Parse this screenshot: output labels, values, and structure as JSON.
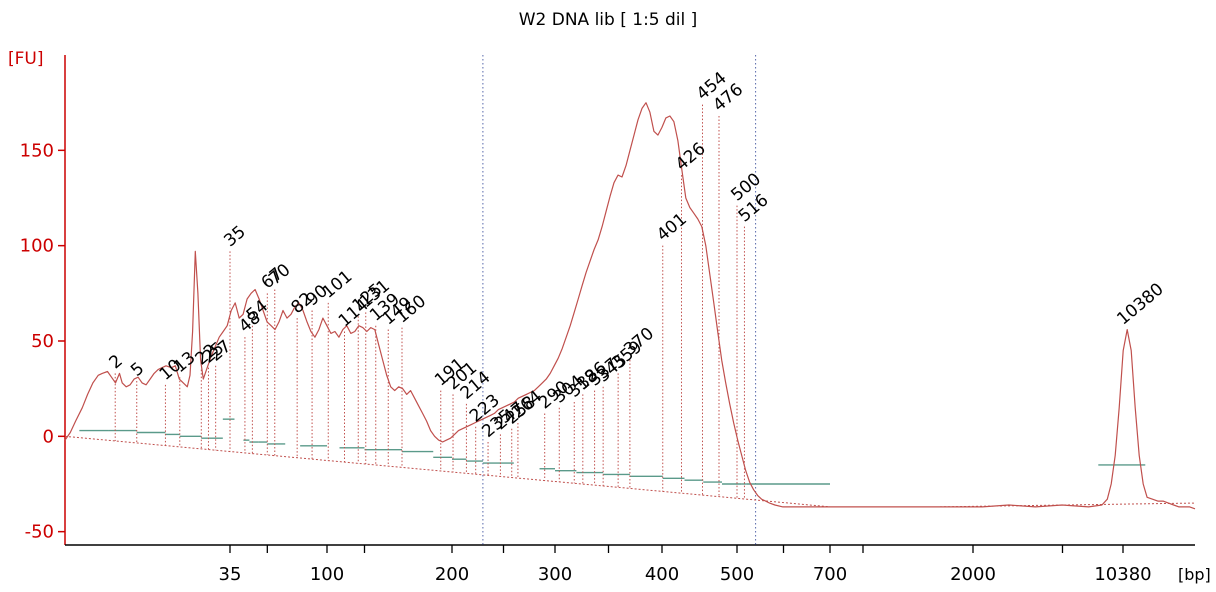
{
  "chart_data": {
    "type": "line",
    "title": "W2 DNA lib  [ 1:5 dil ]",
    "ylabel": "[FU]",
    "xlabel": "[bp]",
    "ylim": [
      -57,
      200
    ],
    "y_ticks": [
      -50,
      0,
      50,
      100,
      150
    ],
    "x_ticks": [
      "35",
      "100",
      "200",
      "300",
      "400",
      "500",
      "700",
      "2000",
      "10380"
    ],
    "grid": false,
    "series_color": "#c0504d",
    "lower_marker": "35",
    "lower_marker_color": "#008000",
    "upper_marker": "10380",
    "upper_marker_color": "#9933ff",
    "region_bounds_bp": [
      230,
      540
    ],
    "peaks": [
      {
        "label": "2",
        "bp": 19,
        "fu": 33
      },
      {
        "label": "5",
        "bp": 22,
        "fu": 29
      },
      {
        "label": "10",
        "bp": 26,
        "fu": 27
      },
      {
        "label": "13",
        "bp": 28,
        "fu": 31
      },
      {
        "label": "22",
        "bp": 31,
        "fu": 35
      },
      {
        "label": "25",
        "bp": 32,
        "fu": 36
      },
      {
        "label": "27",
        "bp": 33,
        "fu": 37
      },
      {
        "label": "35",
        "bp": 35,
        "fu": 97
      },
      {
        "label": "48",
        "bp": 45,
        "fu": 52
      },
      {
        "label": "54",
        "bp": 50,
        "fu": 58
      },
      {
        "label": "67",
        "bp": 60,
        "fu": 75
      },
      {
        "label": "70",
        "bp": 65,
        "fu": 77
      },
      {
        "label": "82",
        "bp": 80,
        "fu": 62
      },
      {
        "label": "90",
        "bp": 90,
        "fu": 66
      },
      {
        "label": "101",
        "bp": 101,
        "fu": 70
      },
      {
        "label": "114",
        "bp": 114,
        "fu": 55
      },
      {
        "label": "125",
        "bp": 125,
        "fu": 63
      },
      {
        "label": "131",
        "bp": 131,
        "fu": 65
      },
      {
        "label": "139",
        "bp": 139,
        "fu": 58
      },
      {
        "label": "149",
        "bp": 149,
        "fu": 56
      },
      {
        "label": "160",
        "bp": 160,
        "fu": 57
      },
      {
        "label": "191",
        "bp": 191,
        "fu": 24
      },
      {
        "label": "201",
        "bp": 201,
        "fu": 22
      },
      {
        "label": "214",
        "bp": 214,
        "fu": 17
      },
      {
        "label": "223",
        "bp": 223,
        "fu": 5
      },
      {
        "label": "235",
        "bp": 235,
        "fu": -3
      },
      {
        "label": "247",
        "bp": 247,
        "fu": 1
      },
      {
        "label": "258",
        "bp": 258,
        "fu": 4
      },
      {
        "label": "264",
        "bp": 264,
        "fu": 7
      },
      {
        "label": "290",
        "bp": 290,
        "fu": 12
      },
      {
        "label": "304",
        "bp": 304,
        "fu": 15
      },
      {
        "label": "318",
        "bp": 318,
        "fu": 18
      },
      {
        "label": "326",
        "bp": 326,
        "fu": 22
      },
      {
        "label": "337",
        "bp": 337,
        "fu": 24
      },
      {
        "label": "345",
        "bp": 345,
        "fu": 26
      },
      {
        "label": "359",
        "bp": 359,
        "fu": 33
      },
      {
        "label": "370",
        "bp": 370,
        "fu": 40
      },
      {
        "label": "401",
        "bp": 401,
        "fu": 100
      },
      {
        "label": "426",
        "bp": 426,
        "fu": 137
      },
      {
        "label": "454",
        "bp": 454,
        "fu": 174
      },
      {
        "label": "476",
        "bp": 476,
        "fu": 168
      },
      {
        "label": "500",
        "bp": 500,
        "fu": 121
      },
      {
        "label": "516",
        "bp": 516,
        "fu": 110
      },
      {
        "label": "10380",
        "bp": 10380,
        "fu": 56
      }
    ],
    "trace_fu": [
      [
        0,
        -2
      ],
      [
        4,
        2
      ],
      [
        8,
        8
      ],
      [
        13,
        15
      ],
      [
        17,
        22
      ],
      [
        21,
        28
      ],
      [
        25,
        32
      ],
      [
        28,
        33
      ],
      [
        32,
        34
      ],
      [
        35,
        31
      ],
      [
        38,
        28
      ],
      [
        41,
        33
      ],
      [
        43,
        28
      ],
      [
        46,
        26
      ],
      [
        49,
        27
      ],
      [
        52,
        30
      ],
      [
        55,
        31
      ],
      [
        58,
        28
      ],
      [
        61,
        27
      ],
      [
        64,
        30
      ],
      [
        67,
        33
      ],
      [
        70,
        35
      ],
      [
        73,
        36
      ],
      [
        76,
        37
      ],
      [
        80,
        36
      ],
      [
        83,
        37
      ],
      [
        86,
        30
      ],
      [
        89,
        28
      ],
      [
        92,
        26
      ],
      [
        94,
        32
      ],
      [
        96,
        55
      ],
      [
        98,
        97
      ],
      [
        100,
        75
      ],
      [
        102,
        40
      ],
      [
        104,
        30
      ],
      [
        107,
        36
      ],
      [
        110,
        42
      ],
      [
        113,
        47
      ],
      [
        116,
        52
      ],
      [
        119,
        55
      ],
      [
        122,
        58
      ],
      [
        125,
        66
      ],
      [
        128,
        70
      ],
      [
        131,
        62
      ],
      [
        134,
        64
      ],
      [
        137,
        72
      ],
      [
        140,
        75
      ],
      [
        143,
        77
      ],
      [
        146,
        72
      ],
      [
        149,
        66
      ],
      [
        152,
        60
      ],
      [
        155,
        58
      ],
      [
        158,
        56
      ],
      [
        161,
        60
      ],
      [
        164,
        66
      ],
      [
        167,
        62
      ],
      [
        170,
        64
      ],
      [
        173,
        68
      ],
      [
        176,
        70
      ],
      [
        179,
        66
      ],
      [
        182,
        60
      ],
      [
        185,
        55
      ],
      [
        188,
        52
      ],
      [
        191,
        56
      ],
      [
        194,
        62
      ],
      [
        197,
        58
      ],
      [
        200,
        54
      ],
      [
        203,
        55
      ],
      [
        206,
        52
      ],
      [
        209,
        56
      ],
      [
        212,
        58
      ],
      [
        215,
        54
      ],
      [
        218,
        55
      ],
      [
        221,
        58
      ],
      [
        224,
        57
      ],
      [
        227,
        55
      ],
      [
        230,
        57
      ],
      [
        233,
        56
      ],
      [
        236,
        48
      ],
      [
        239,
        40
      ],
      [
        242,
        32
      ],
      [
        245,
        26
      ],
      [
        248,
        24
      ],
      [
        251,
        26
      ],
      [
        254,
        25
      ],
      [
        257,
        22
      ],
      [
        260,
        24
      ],
      [
        263,
        20
      ],
      [
        266,
        16
      ],
      [
        269,
        12
      ],
      [
        272,
        8
      ],
      [
        275,
        3
      ],
      [
        278,
        0
      ],
      [
        281,
        -2
      ],
      [
        284,
        -3
      ],
      [
        287,
        -2
      ],
      [
        290,
        -1
      ],
      [
        293,
        1
      ],
      [
        296,
        3
      ],
      [
        299,
        4
      ],
      [
        302,
        5
      ],
      [
        305,
        6
      ],
      [
        308,
        7
      ],
      [
        311,
        8
      ],
      [
        314,
        9
      ],
      [
        317,
        10
      ],
      [
        320,
        11
      ],
      [
        323,
        12
      ],
      [
        326,
        14
      ],
      [
        329,
        15
      ],
      [
        332,
        16
      ],
      [
        335,
        17
      ],
      [
        338,
        18
      ],
      [
        341,
        20
      ],
      [
        344,
        21
      ],
      [
        347,
        22
      ],
      [
        350,
        23
      ],
      [
        353,
        24
      ],
      [
        356,
        26
      ],
      [
        359,
        28
      ],
      [
        362,
        30
      ],
      [
        365,
        33
      ],
      [
        368,
        37
      ],
      [
        371,
        41
      ],
      [
        374,
        46
      ],
      [
        377,
        52
      ],
      [
        380,
        58
      ],
      [
        383,
        65
      ],
      [
        386,
        72
      ],
      [
        389,
        79
      ],
      [
        392,
        86
      ],
      [
        395,
        92
      ],
      [
        398,
        98
      ],
      [
        401,
        103
      ],
      [
        404,
        110
      ],
      [
        407,
        118
      ],
      [
        410,
        126
      ],
      [
        413,
        133
      ],
      [
        416,
        137
      ],
      [
        419,
        136
      ],
      [
        422,
        142
      ],
      [
        425,
        150
      ],
      [
        428,
        158
      ],
      [
        431,
        166
      ],
      [
        434,
        172
      ],
      [
        437,
        175
      ],
      [
        440,
        170
      ],
      [
        443,
        160
      ],
      [
        446,
        158
      ],
      [
        449,
        162
      ],
      [
        452,
        167
      ],
      [
        455,
        168
      ],
      [
        458,
        165
      ],
      [
        461,
        155
      ],
      [
        464,
        140
      ],
      [
        467,
        125
      ],
      [
        470,
        120
      ],
      [
        473,
        117
      ],
      [
        476,
        114
      ],
      [
        479,
        110
      ],
      [
        482,
        100
      ],
      [
        485,
        85
      ],
      [
        488,
        70
      ],
      [
        491,
        55
      ],
      [
        494,
        40
      ],
      [
        497,
        28
      ],
      [
        500,
        17
      ],
      [
        503,
        7
      ],
      [
        506,
        -2
      ],
      [
        509,
        -10
      ],
      [
        512,
        -18
      ],
      [
        515,
        -24
      ],
      [
        518,
        -28
      ],
      [
        521,
        -31
      ],
      [
        524,
        -33
      ],
      [
        527,
        -34
      ],
      [
        530,
        -35
      ],
      [
        534,
        -36
      ],
      [
        540,
        -37
      ],
      [
        550,
        -37
      ],
      [
        570,
        -37
      ],
      [
        590,
        -37
      ],
      [
        610,
        -37
      ],
      [
        630,
        -37
      ],
      [
        650,
        -37
      ],
      [
        670,
        -37
      ],
      [
        690,
        -37
      ],
      [
        710,
        -36
      ],
      [
        730,
        -37
      ],
      [
        750,
        -36
      ],
      [
        770,
        -37
      ],
      [
        780,
        -36
      ],
      [
        784,
        -33
      ],
      [
        787,
        -25
      ],
      [
        790,
        -10
      ],
      [
        793,
        15
      ],
      [
        796,
        45
      ],
      [
        799,
        56
      ],
      [
        802,
        45
      ],
      [
        805,
        15
      ],
      [
        808,
        -10
      ],
      [
        811,
        -25
      ],
      [
        814,
        -32
      ],
      [
        818,
        -33
      ],
      [
        822,
        -34
      ],
      [
        826,
        -34
      ],
      [
        830,
        -35
      ],
      [
        834,
        -36
      ],
      [
        838,
        -37
      ],
      [
        842,
        -37
      ],
      [
        846,
        -37
      ],
      [
        850,
        -38
      ]
    ]
  }
}
